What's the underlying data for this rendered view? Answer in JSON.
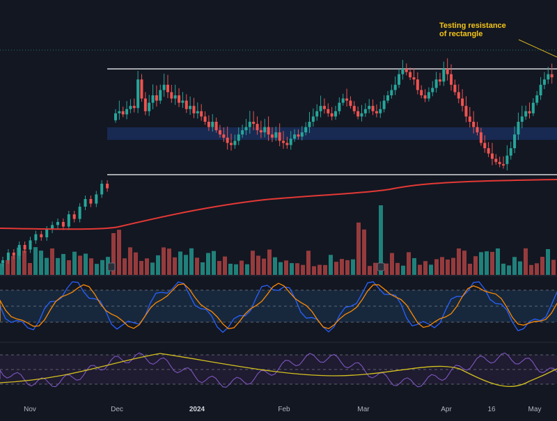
{
  "chart_data": {
    "type": "candlestick",
    "title": "",
    "annotation": "Testing resistance\nof rectangle",
    "x_tick_labels": [
      "Nov",
      "Dec",
      "2024",
      "Feb",
      "Mar",
      "Apr",
      "16",
      "May"
    ],
    "rectangle": {
      "resistance": 1.0,
      "support": 0.0,
      "note": "horizontal white lines bounding the range"
    },
    "price": {
      "close": [
        0.05,
        0.1,
        0.08,
        0.15,
        0.12,
        0.18,
        0.22,
        0.2,
        0.25,
        0.28,
        0.3,
        0.27,
        0.35,
        0.32,
        0.4,
        0.45,
        0.42,
        0.48,
        0.55,
        0.52,
        0.58,
        0.6,
        0.57,
        0.62,
        0.65,
        0.63,
        0.9,
        0.72,
        0.6,
        0.68,
        0.75,
        0.7,
        0.8,
        0.85,
        0.78,
        0.72,
        0.75,
        0.68,
        0.7,
        0.62,
        0.65,
        0.58,
        0.6,
        0.55,
        0.5,
        0.45,
        0.5,
        0.42,
        0.38,
        0.35,
        0.3,
        0.28,
        0.32,
        0.38,
        0.42,
        0.45,
        0.5,
        0.48,
        0.42,
        0.4,
        0.45,
        0.38,
        0.35,
        0.4,
        0.32,
        0.3,
        0.28,
        0.34,
        0.38,
        0.36,
        0.4,
        0.45,
        0.5,
        0.55,
        0.6,
        0.65,
        0.62,
        0.58,
        0.55,
        0.6,
        0.68,
        0.72,
        0.7,
        0.65,
        0.6,
        0.55,
        0.58,
        0.62,
        0.65,
        0.6,
        0.58,
        0.62,
        0.7,
        0.75,
        0.8,
        0.85,
        0.95,
        1.0,
        0.97,
        0.92,
        0.9,
        0.8,
        0.75,
        0.72,
        0.78,
        0.82,
        0.9,
        0.88,
        1.0,
        0.95,
        0.85,
        0.78,
        0.72,
        0.65,
        0.55,
        0.5,
        0.45,
        0.4,
        0.3,
        0.25,
        0.2,
        0.15,
        0.12,
        0.1,
        0.1,
        0.18,
        0.25,
        0.38,
        0.5,
        0.55,
        0.6,
        0.58,
        0.68,
        0.75,
        0.85,
        0.9,
        0.95,
        0.92
      ],
      "pre_range_close": [
        0.05,
        0.1,
        0.08,
        0.15,
        0.12,
        0.18,
        0.22,
        0.2,
        0.25,
        0.28,
        0.3,
        0.27,
        0.35,
        0.32,
        0.4,
        0.45,
        0.42,
        0.48,
        0.55,
        0.52
      ]
    },
    "moving_average": "red line rising beneath price",
    "volume": "histogram bars, green/red, with earnings markers",
    "oscillators": [
      "stochastic-style blue/orange lines",
      "RSI-style purple line with yellow signal"
    ],
    "grid": false
  }
}
